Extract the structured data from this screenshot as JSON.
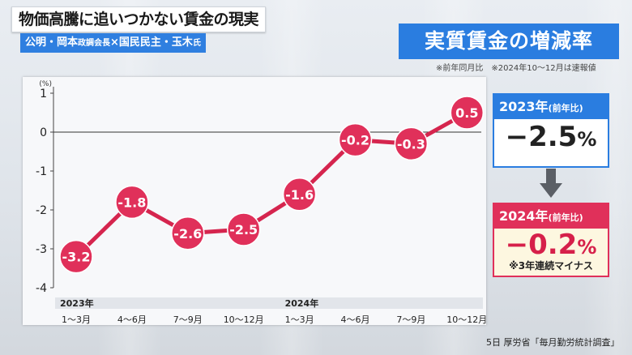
{
  "header": {
    "headline": "物価高騰に追いつかない賃金の現実",
    "speakers": {
      "part1": "公明・岡本",
      "part1_small": "政調会長",
      "sep": "×",
      "part2": "国民民主・玉木",
      "part2_small": "氏"
    }
  },
  "chart_title": "実質賃金の増減率",
  "note": "※前年同月比　※2024年10～12月は速報値",
  "chart_data": {
    "type": "line",
    "y_unit": "(%)",
    "ylim": [
      -4,
      1
    ],
    "yticks": [
      "1",
      "0",
      "-1",
      "-2",
      "-3",
      "-4"
    ],
    "year_labels": [
      "2023年",
      "2024年"
    ],
    "categories": [
      "1～3月",
      "4～6月",
      "7～9月",
      "10～12月",
      "1～3月",
      "4～6月",
      "7～9月",
      "10～12月"
    ],
    "values": [
      -3.2,
      -1.8,
      -2.6,
      -2.5,
      -1.6,
      -0.2,
      -0.3,
      0.5
    ],
    "data_labels": [
      "-3.2",
      "-1.8",
      "-2.6",
      "-2.5",
      "-1.6",
      "-0.2",
      "-0.3",
      "0.5"
    ],
    "line_color": "#d5254e",
    "marker_color": "#e0305a"
  },
  "summary": {
    "y2023": {
      "label": "2023年",
      "paren": "(前年比)",
      "value": "−2.5",
      "unit": "%"
    },
    "y2024": {
      "label": "2024年",
      "paren": "(前年比)",
      "value": "−0.2",
      "unit": "%",
      "note": "※3年連続マイナス"
    }
  },
  "source": "5日 厚労省「毎月勤労統計調査」",
  "colors": {
    "accent_blue": "#2a7de0",
    "accent_red": "#e0305a"
  }
}
